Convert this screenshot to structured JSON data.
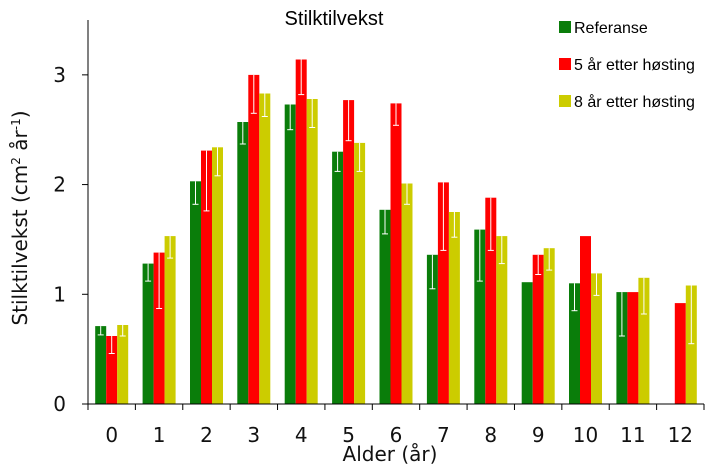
{
  "chart_data": {
    "type": "bar",
    "title": "Stilktilvekst",
    "xlabel": "Alder  (år)",
    "ylabel_main": "Stilktilvekst  (cm",
    "ylabel_sup1": "2",
    "ylabel_mid": " år",
    "ylabel_sup2": "-1",
    "ylabel_end": ")",
    "ylim": [
      0,
      3.5
    ],
    "yticks": [
      "0",
      "1",
      "2",
      "3"
    ],
    "categories": [
      "0",
      "1",
      "2",
      "3",
      "4",
      "5",
      "6",
      "7",
      "8",
      "9",
      "10",
      "11",
      "12"
    ],
    "series": [
      {
        "name": "Referanse",
        "color": "#0a7d0a",
        "error_color": "#ffffff",
        "values": [
          0.71,
          1.28,
          2.03,
          2.57,
          2.73,
          2.3,
          1.77,
          1.36,
          1.59,
          1.11,
          1.1,
          1.02,
          null
        ],
        "error_low": [
          0.63,
          1.12,
          1.82,
          2.37,
          2.5,
          2.12,
          1.55,
          1.05,
          1.12,
          null,
          0.85,
          0.62,
          null
        ]
      },
      {
        "name": "5 år etter høsting",
        "color": "#ff0000",
        "error_color": "#ffffff",
        "values": [
          0.62,
          1.38,
          2.31,
          3.0,
          3.14,
          2.77,
          2.74,
          2.02,
          1.88,
          1.36,
          1.53,
          1.02,
          0.92
        ],
        "error_low": [
          0.46,
          0.87,
          1.76,
          2.65,
          2.82,
          2.4,
          2.54,
          1.4,
          1.4,
          1.18,
          null,
          null,
          null
        ]
      },
      {
        "name": "8 år etter høsting",
        "color": "#cccc00",
        "error_color": "#ffffff",
        "values": [
          0.72,
          1.53,
          2.34,
          2.83,
          2.78,
          2.38,
          2.01,
          1.75,
          1.53,
          1.42,
          1.19,
          1.15,
          1.08
        ],
        "error_low": [
          0.62,
          1.33,
          2.08,
          2.62,
          2.52,
          2.12,
          1.82,
          1.52,
          1.28,
          1.22,
          0.99,
          0.82,
          0.55
        ]
      }
    ],
    "legend_position": "top-right"
  }
}
